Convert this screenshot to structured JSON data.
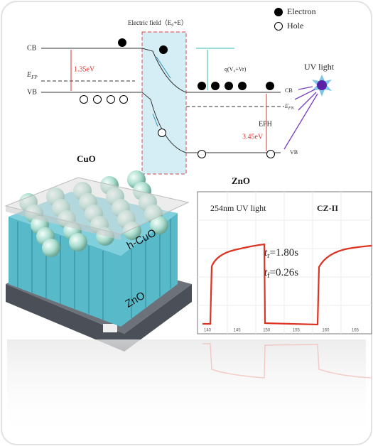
{
  "legend": {
    "electron": "Electron",
    "hole": "Hole"
  },
  "band_diagram": {
    "electric_field": "Electric field（E₀+E）",
    "cuo_cb": "CB",
    "cuo_vb": "VB",
    "efp": {
      "main": "E",
      "sub": "FP"
    },
    "cuo_gap": "1.35eV",
    "barrier": "q(V₀+Vr)",
    "uv_light": "UV light",
    "zno_cb": "CB",
    "efn": {
      "main": "E",
      "sub": "FN"
    },
    "zno_vb": "VB",
    "eph": "EPH",
    "zno_gap": "3.45eV",
    "cuo": "CuO",
    "zno": "ZnO"
  },
  "device": {
    "h_cuo": "h-CuO",
    "zno": "ZnO"
  },
  "chart": {
    "light": "254nm UV light",
    "sample": "CZ-II",
    "rise": {
      "symbol": "t",
      "sub": "r",
      "text": "=1.80s"
    },
    "fall": {
      "symbol": "t",
      "sub": "f",
      "text": "=0.26s"
    },
    "xticks": [
      "140",
      "145",
      "150",
      "155",
      "160",
      "165"
    ]
  }
}
